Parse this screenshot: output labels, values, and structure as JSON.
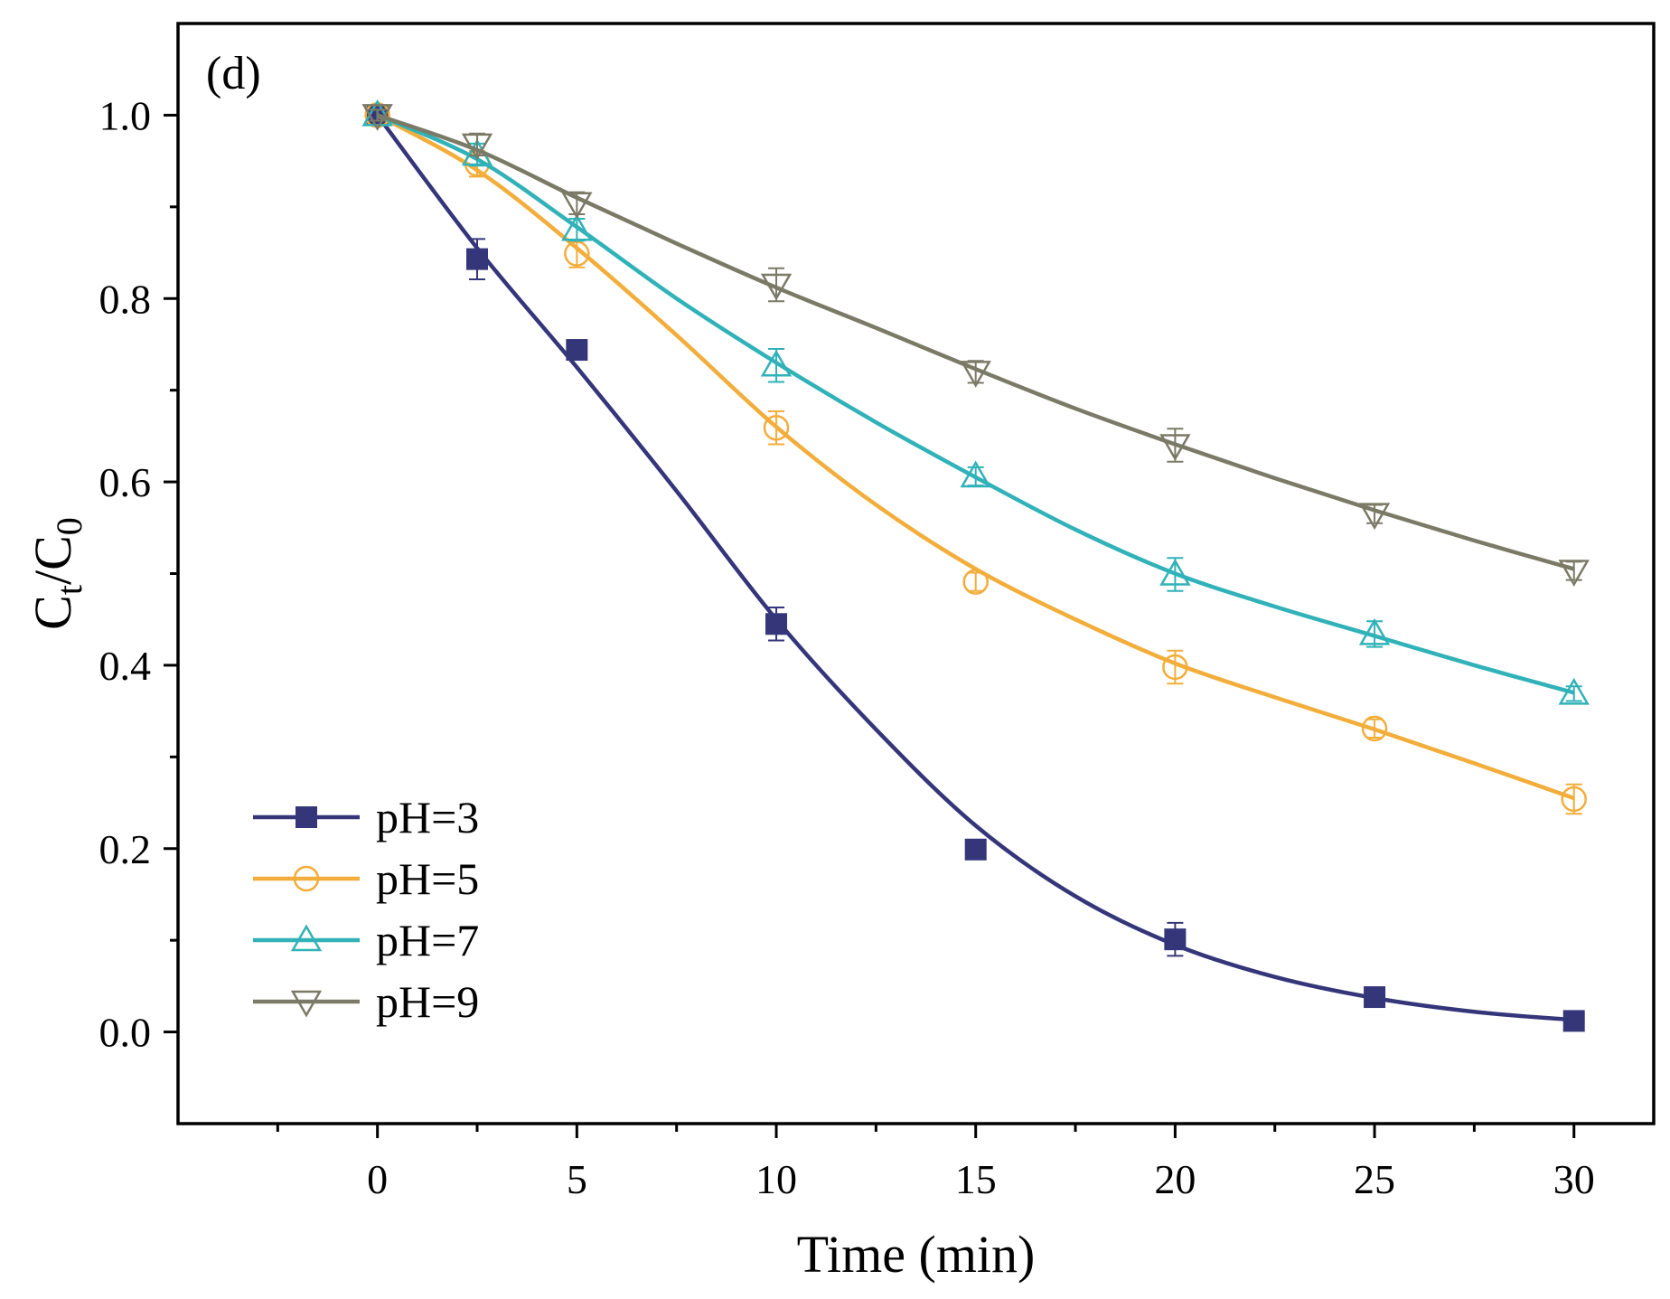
{
  "chart_data": {
    "type": "line",
    "panel_label": "(d)",
    "xlabel": "Time (min)",
    "ylabel_main": "C",
    "ylabel_sub1": "t",
    "ylabel_mid": "/C",
    "ylabel_sub2": "0",
    "xlim": [
      -5,
      32
    ],
    "ylim": [
      -0.1,
      1.1
    ],
    "xticks": [
      0,
      5,
      10,
      15,
      20,
      25,
      30
    ],
    "xtick_labels": [
      "0",
      "5",
      "10",
      "15",
      "20",
      "25",
      "30"
    ],
    "yticks": [
      0.0,
      0.2,
      0.4,
      0.6,
      0.8,
      1.0
    ],
    "ytick_labels": [
      "0.0",
      "0.2",
      "0.4",
      "0.6",
      "0.8",
      "1.0"
    ],
    "legend_position": "bottom-left",
    "series": [
      {
        "name": "pH=3",
        "color": "#35367a",
        "marker": "square-filled",
        "x": [
          0,
          2.5,
          5,
          10,
          15,
          20,
          25,
          30
        ],
        "y": [
          1.0,
          0.843,
          0.744,
          0.445,
          0.199,
          0.101,
          0.038,
          0.012
        ],
        "err": [
          0.008,
          0.022,
          0.01,
          0.018,
          0.009,
          0.018,
          0.008,
          0.006
        ],
        "fit": [
          [
            0,
            1.0
          ],
          [
            2.5,
            0.855
          ],
          [
            5,
            0.725
          ],
          [
            7.5,
            0.59
          ],
          [
            10,
            0.45
          ],
          [
            12.5,
            0.33
          ],
          [
            15,
            0.225
          ],
          [
            17.5,
            0.148
          ],
          [
            20,
            0.095
          ],
          [
            22.5,
            0.06
          ],
          [
            25,
            0.037
          ],
          [
            27.5,
            0.022
          ],
          [
            30,
            0.013
          ]
        ]
      },
      {
        "name": "pH=5",
        "color": "#f3ad3a",
        "marker": "circle-open",
        "x": [
          0,
          2.5,
          5,
          10,
          15,
          20,
          25,
          30
        ],
        "y": [
          1.0,
          0.947,
          0.849,
          0.659,
          0.491,
          0.398,
          0.331,
          0.254
        ],
        "err": [
          0.006,
          0.014,
          0.015,
          0.018,
          0.01,
          0.018,
          0.01,
          0.016
        ],
        "fit": [
          [
            0,
            1.0
          ],
          [
            2.5,
            0.94
          ],
          [
            5,
            0.855
          ],
          [
            7.5,
            0.76
          ],
          [
            10,
            0.66
          ],
          [
            12.5,
            0.575
          ],
          [
            15,
            0.505
          ],
          [
            17.5,
            0.45
          ],
          [
            20,
            0.402
          ],
          [
            22.5,
            0.365
          ],
          [
            25,
            0.33
          ],
          [
            27.5,
            0.293
          ],
          [
            30,
            0.255
          ]
        ]
      },
      {
        "name": "pH=7",
        "color": "#30b2b8",
        "marker": "triangle-up-open",
        "x": [
          0,
          2.5,
          5,
          10,
          15,
          20,
          25,
          30
        ],
        "y": [
          1.0,
          0.957,
          0.875,
          0.727,
          0.606,
          0.499,
          0.434,
          0.369
        ],
        "err": [
          0.006,
          0.012,
          0.012,
          0.018,
          0.01,
          0.018,
          0.014,
          0.008
        ],
        "fit": [
          [
            0,
            1.0
          ],
          [
            2.5,
            0.952
          ],
          [
            5,
            0.878
          ],
          [
            7.5,
            0.8
          ],
          [
            10,
            0.73
          ],
          [
            12.5,
            0.665
          ],
          [
            15,
            0.605
          ],
          [
            17.5,
            0.548
          ],
          [
            20,
            0.5
          ],
          [
            22.5,
            0.464
          ],
          [
            25,
            0.432
          ],
          [
            27.5,
            0.4
          ],
          [
            30,
            0.37
          ]
        ]
      },
      {
        "name": "pH=9",
        "color": "#7a7a66",
        "marker": "triangle-down-open",
        "x": [
          0,
          2.5,
          5,
          10,
          15,
          20,
          25,
          30
        ],
        "y": [
          1.0,
          0.968,
          0.904,
          0.815,
          0.72,
          0.64,
          0.565,
          0.503
        ],
        "err": [
          0.006,
          0.012,
          0.012,
          0.018,
          0.012,
          0.018,
          0.01,
          0.01
        ],
        "fit": [
          [
            0,
            1.0
          ],
          [
            2.5,
            0.962
          ],
          [
            5,
            0.91
          ],
          [
            7.5,
            0.86
          ],
          [
            10,
            0.812
          ],
          [
            12.5,
            0.768
          ],
          [
            15,
            0.723
          ],
          [
            17.5,
            0.68
          ],
          [
            20,
            0.641
          ],
          [
            22.5,
            0.604
          ],
          [
            25,
            0.569
          ],
          [
            27.5,
            0.536
          ],
          [
            30,
            0.505
          ]
        ]
      }
    ]
  }
}
